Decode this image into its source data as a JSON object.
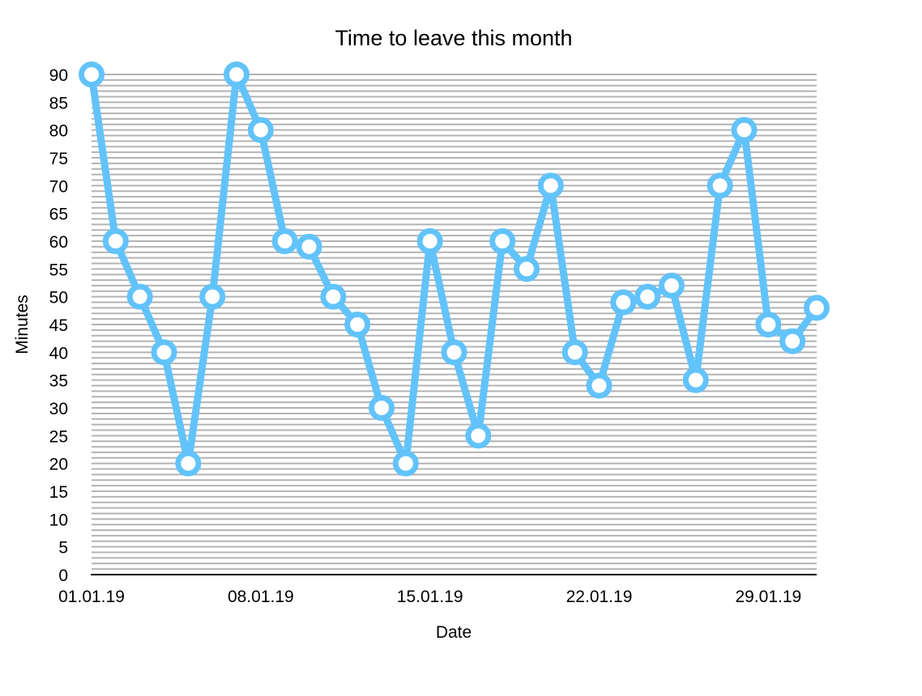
{
  "chart_data": {
    "type": "line",
    "title": "Time to leave this month",
    "xlabel": "Date",
    "ylabel": "Minutes",
    "ylim": [
      0,
      90
    ],
    "y_ticks": [
      0,
      5,
      10,
      15,
      20,
      25,
      30,
      35,
      40,
      45,
      50,
      55,
      60,
      65,
      70,
      75,
      80,
      85,
      90
    ],
    "x_ticks": [
      "01.01.19",
      "08.01.19",
      "15.01.19",
      "22.01.19",
      "29.01.19"
    ],
    "grid": "horizontal",
    "series_color": "#62c3fb",
    "x": [
      "01.01.19",
      "02.01.19",
      "03.01.19",
      "04.01.19",
      "05.01.19",
      "06.01.19",
      "07.01.19",
      "08.01.19",
      "09.01.19",
      "10.01.19",
      "11.01.19",
      "12.01.19",
      "13.01.19",
      "14.01.19",
      "15.01.19",
      "16.01.19",
      "17.01.19",
      "18.01.19",
      "19.01.19",
      "20.01.19",
      "21.01.19",
      "22.01.19",
      "23.01.19",
      "24.01.19",
      "25.01.19",
      "26.01.19",
      "27.01.19",
      "28.01.19",
      "29.01.19",
      "30.01.19",
      "31.01.19"
    ],
    "series": [
      {
        "values": [
          90,
          60,
          50,
          40,
          20,
          50,
          90,
          80,
          60,
          59,
          50,
          45,
          30,
          20,
          60,
          40,
          25,
          60,
          55,
          70,
          40,
          34,
          49,
          50,
          52,
          35,
          70,
          80,
          45,
          42,
          48
        ]
      }
    ]
  }
}
